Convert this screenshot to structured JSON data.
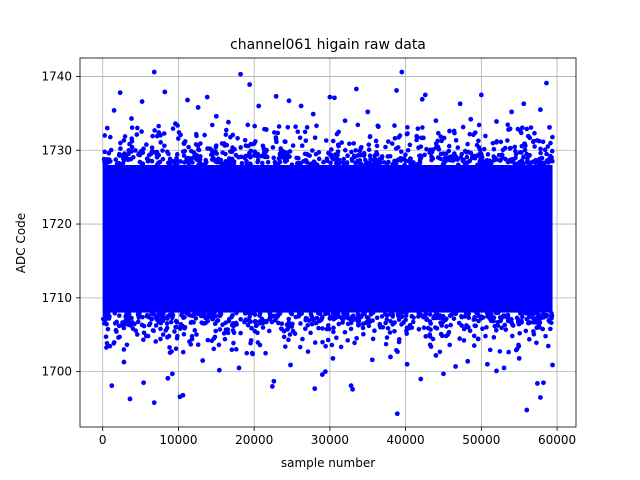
{
  "chart_data": {
    "type": "scatter",
    "title": "channel061 higain raw data",
    "xlabel": "sample number",
    "ylabel": "ADC Code",
    "xlim": [
      -3000,
      62500
    ],
    "ylim": [
      1692.5,
      1742.5
    ],
    "xticks": [
      0,
      10000,
      20000,
      30000,
      40000,
      50000,
      60000
    ],
    "xtick_labels": [
      "0",
      "10000",
      "20000",
      "30000",
      "40000",
      "50000",
      "60000"
    ],
    "yticks": [
      1700,
      1710,
      1720,
      1730,
      1740
    ],
    "ytick_labels": [
      "1700",
      "1710",
      "1720",
      "1730",
      "1740"
    ],
    "grid": true,
    "marker_color": "#0000ff",
    "n_samples": 59400,
    "central_band": {
      "x_range": [
        0,
        59400
      ],
      "y_range": [
        1708,
        1728
      ]
    },
    "series": [
      {
        "points": [
          [
            6800,
            1740.6
          ],
          [
            18200,
            1740.3
          ],
          [
            39500,
            1740.6
          ],
          [
            58600,
            1739.1
          ],
          [
            19400,
            1738.9
          ],
          [
            2300,
            1737.8
          ],
          [
            8200,
            1737.9
          ],
          [
            30000,
            1737.2
          ],
          [
            30600,
            1737.1
          ],
          [
            22900,
            1737.3
          ],
          [
            50000,
            1737.5
          ],
          [
            42600,
            1737.5
          ],
          [
            13800,
            1737.2
          ],
          [
            24600,
            1736.7
          ],
          [
            33500,
            1738.3
          ],
          [
            38800,
            1738.1
          ],
          [
            42200,
            1736.9
          ],
          [
            5200,
            1736.6
          ],
          [
            11200,
            1736.8
          ],
          [
            26200,
            1736.0
          ],
          [
            47200,
            1736.3
          ],
          [
            55600,
            1736.3
          ],
          [
            1500,
            1735.4
          ],
          [
            12600,
            1735.8
          ],
          [
            20600,
            1736.0
          ],
          [
            35000,
            1735.2
          ],
          [
            54000,
            1735.2
          ],
          [
            57800,
            1735.5
          ],
          [
            3800,
            1734.3
          ],
          [
            15000,
            1734.6
          ],
          [
            27800,
            1734.9
          ],
          [
            44000,
            1734.0
          ],
          [
            52000,
            1733.9
          ],
          [
            9600,
            1733.6
          ],
          [
            16600,
            1733.8
          ],
          [
            32000,
            1734.0
          ],
          [
            48600,
            1734.2
          ],
          [
            59000,
            1733.1
          ],
          [
            600,
            1733.0
          ],
          [
            21600,
            1732.8
          ],
          [
            36400,
            1733.2
          ],
          [
            45800,
            1732.6
          ],
          [
            53800,
            1732.9
          ],
          [
            7400,
            1732.4
          ],
          [
            56200,
            1731.9
          ],
          [
            1200,
            1698.1
          ],
          [
            3600,
            1696.3
          ],
          [
            5400,
            1698.5
          ],
          [
            6800,
            1695.8
          ],
          [
            9200,
            1699.7
          ],
          [
            10200,
            1696.6
          ],
          [
            10600,
            1696.8
          ],
          [
            18000,
            1700.5
          ],
          [
            22400,
            1698.0
          ],
          [
            22600,
            1698.7
          ],
          [
            28000,
            1697.7
          ],
          [
            29000,
            1699.6
          ],
          [
            29400,
            1700.0
          ],
          [
            30400,
            1701.8
          ],
          [
            32800,
            1698.1
          ],
          [
            33000,
            1697.6
          ],
          [
            38900,
            1694.3
          ],
          [
            42000,
            1699.0
          ],
          [
            45000,
            1699.7
          ],
          [
            46600,
            1700.7
          ],
          [
            52000,
            1700.1
          ],
          [
            53000,
            1700.5
          ],
          [
            56000,
            1694.8
          ],
          [
            57400,
            1698.4
          ],
          [
            57800,
            1696.5
          ],
          [
            58200,
            1698.5
          ],
          [
            59400,
            1700.9
          ],
          [
            2800,
            1701.3
          ],
          [
            8600,
            1699.1
          ],
          [
            13200,
            1701.5
          ],
          [
            15400,
            1700.2
          ],
          [
            24800,
            1700.9
          ],
          [
            35600,
            1701.6
          ],
          [
            40200,
            1701.0
          ],
          [
            48200,
            1701.4
          ],
          [
            50800,
            1701.0
          ],
          [
            55000,
            1701.8
          ],
          [
            44000,
            1702.2
          ],
          [
            19800,
            1702.4
          ],
          [
            38000,
            1702.0
          ]
        ]
      }
    ]
  }
}
